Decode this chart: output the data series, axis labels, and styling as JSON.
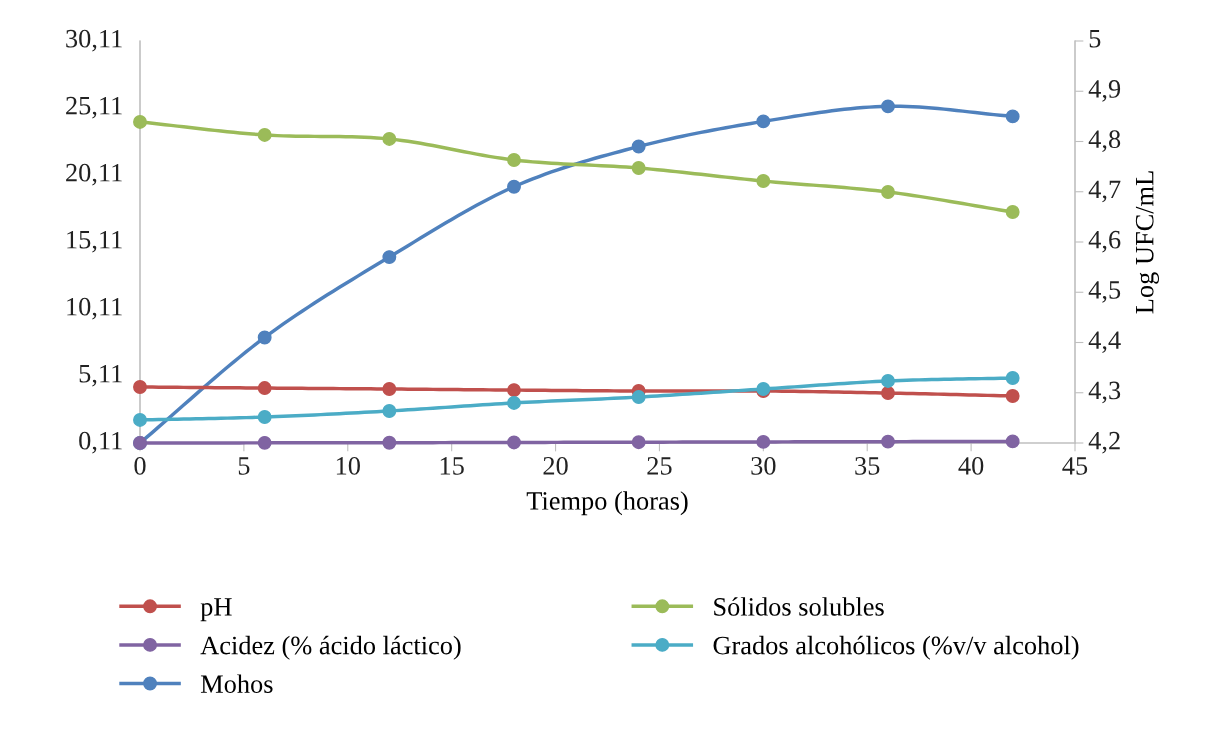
{
  "chart_data": {
    "type": "line",
    "xlabel": "Tiempo (horas)",
    "y2label": "Log UFC/mL",
    "x": [
      0,
      6,
      12,
      18,
      24,
      30,
      36,
      42
    ],
    "xlim": [
      0,
      45
    ],
    "xticks": [
      0,
      5,
      10,
      15,
      20,
      25,
      30,
      35,
      40,
      45
    ],
    "ylim": [
      0.11,
      30.11
    ],
    "yticks": [
      {
        "value": 0.11,
        "label": "0,11"
      },
      {
        "value": 5.11,
        "label": "5,11"
      },
      {
        "value": 10.11,
        "label": "10,11"
      },
      {
        "value": 15.11,
        "label": "15,11"
      },
      {
        "value": 20.11,
        "label": "20,11"
      },
      {
        "value": 25.11,
        "label": "25,11"
      },
      {
        "value": 30.11,
        "label": "30,11"
      }
    ],
    "y2lim": [
      4.2,
      5
    ],
    "y2ticks": [
      {
        "value": 4.2,
        "label": "4,2"
      },
      {
        "value": 4.3,
        "label": "4,3"
      },
      {
        "value": 4.4,
        "label": "4,4"
      },
      {
        "value": 4.5,
        "label": "4,5"
      },
      {
        "value": 4.6,
        "label": "4,6"
      },
      {
        "value": 4.7,
        "label": "4,7"
      },
      {
        "value": 4.8,
        "label": "4,8"
      },
      {
        "value": 4.9,
        "label": "4,9"
      },
      {
        "value": 5,
        "label": "5"
      }
    ],
    "grid": false,
    "legend": "bottom",
    "marker": "circle",
    "line_style": "solid",
    "series": [
      {
        "name": "pH",
        "color": "#c0504d",
        "values": [
          4.29,
          4.21,
          4.14,
          4.06,
          3.99,
          3.99,
          3.84,
          3.62
        ]
      },
      {
        "name": "Sólidos solubles",
        "color": "#9bbb59",
        "values": [
          24.07,
          23.1,
          22.8,
          21.23,
          20.63,
          19.66,
          18.84,
          17.35
        ]
      },
      {
        "name": "Acidez (% ácido láctico)",
        "color": "#8064a2",
        "values": [
          0.11,
          0.12,
          0.13,
          0.15,
          0.17,
          0.19,
          0.21,
          0.23
        ]
      },
      {
        "name": "Grados alcohólicos (%v/v alcohol)",
        "color": "#4bacc6",
        "values": [
          1.83,
          2.05,
          2.5,
          3.1,
          3.54,
          4.14,
          4.74,
          4.96
        ]
      },
      {
        "name": "Mohos",
        "color": "#4f81bd",
        "axis": "y2",
        "values": [
          4.2,
          4.41,
          4.57,
          4.71,
          4.79,
          4.84,
          4.87,
          4.85
        ]
      }
    ]
  }
}
